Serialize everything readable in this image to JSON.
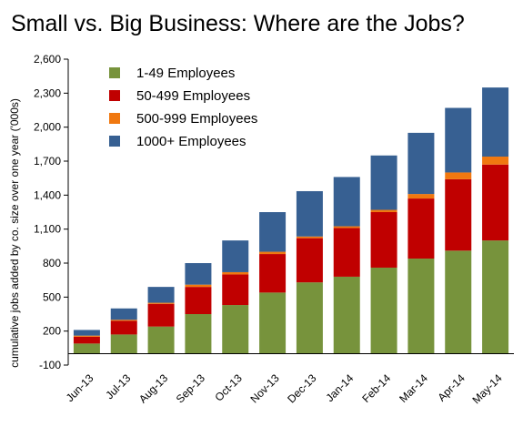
{
  "chart_data": {
    "type": "bar",
    "stacked": true,
    "title": "Small vs. Big Business: Where are the Jobs?",
    "xlabel": "",
    "ylabel": "cumulative jobs added by co. size over one year ('000s)",
    "ylim": [
      -100,
      2600
    ],
    "yticks": [
      -100,
      200,
      500,
      800,
      1100,
      1400,
      1700,
      2000,
      2300,
      2600
    ],
    "ytick_labels": [
      "-100",
      "200",
      "500",
      "800",
      "1,100",
      "1,400",
      "1,700",
      "2,000",
      "2,300",
      "2,600"
    ],
    "grid": false,
    "legend_position": "top-left",
    "categories": [
      "Jun-13",
      "Jul-13",
      "Aug-13",
      "Sep-13",
      "Oct-13",
      "Nov-13",
      "Dec-13",
      "Jan-14",
      "Feb-14",
      "Mar-14",
      "Apr-14",
      "May-14"
    ],
    "series": [
      {
        "name": "1-49 Employees",
        "color": "#77933C",
        "values": [
          90,
          170,
          240,
          350,
          430,
          540,
          630,
          680,
          760,
          840,
          910,
          1000
        ]
      },
      {
        "name": "50-499 Employees",
        "color": "#C00000",
        "values": [
          60,
          120,
          200,
          240,
          270,
          340,
          390,
          430,
          490,
          530,
          630,
          670
        ]
      },
      {
        "name": "500-999 Employees",
        "color": "#F07810",
        "values": [
          10,
          10,
          10,
          20,
          20,
          20,
          15,
          15,
          20,
          40,
          60,
          70
        ]
      },
      {
        "name": "1000+ Employees",
        "color": "#376092",
        "values": [
          50,
          100,
          140,
          190,
          280,
          350,
          400,
          435,
          480,
          540,
          570,
          610
        ]
      }
    ]
  }
}
